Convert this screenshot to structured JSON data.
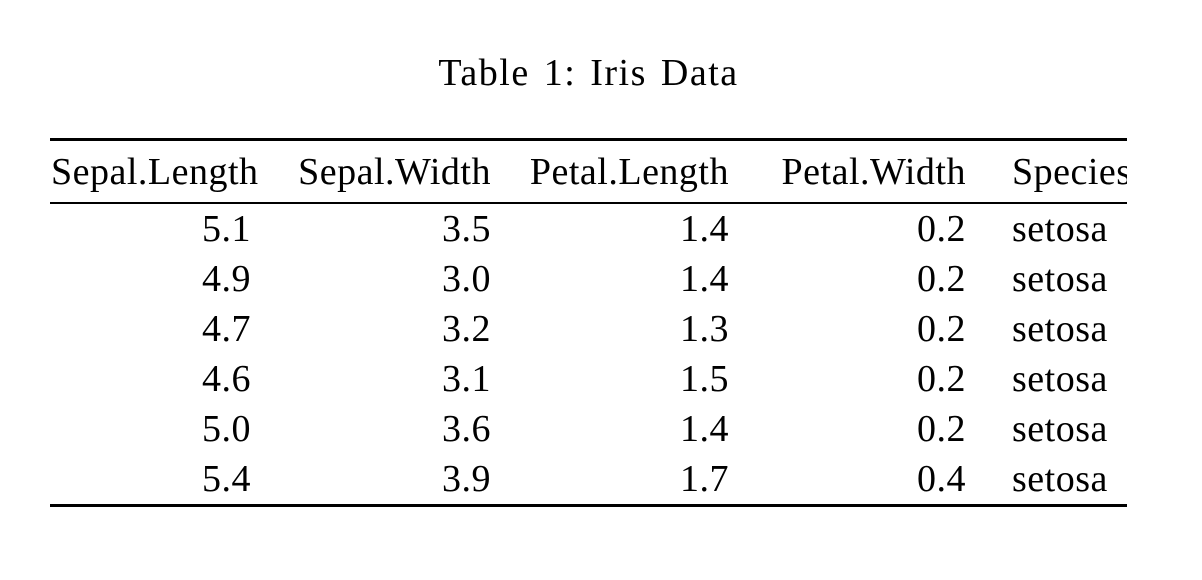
{
  "caption": {
    "text": "Table 1: Iris Data"
  },
  "table": {
    "columns": [
      {
        "key": "sepal-length",
        "label": "Sepal.Length",
        "align": "right"
      },
      {
        "key": "sepal-width",
        "label": "Sepal.Width",
        "align": "right"
      },
      {
        "key": "petal-length",
        "label": "Petal.Length",
        "align": "right"
      },
      {
        "key": "petal-width",
        "label": "Petal.Width",
        "align": "right"
      },
      {
        "key": "species",
        "label": "Species",
        "align": "left"
      }
    ],
    "rows": [
      [
        "5.1",
        "3.5",
        "1.4",
        "0.2",
        "setosa"
      ],
      [
        "4.9",
        "3.0",
        "1.4",
        "0.2",
        "setosa"
      ],
      [
        "4.7",
        "3.2",
        "1.3",
        "0.2",
        "setosa"
      ],
      [
        "4.6",
        "3.1",
        "1.5",
        "0.2",
        "setosa"
      ],
      [
        "5.0",
        "3.6",
        "1.4",
        "0.2",
        "setosa"
      ],
      [
        "5.4",
        "3.9",
        "1.7",
        "0.4",
        "setosa"
      ]
    ]
  },
  "colors": {
    "background": "#ffffff",
    "text": "#000000",
    "rule": "#000000"
  }
}
